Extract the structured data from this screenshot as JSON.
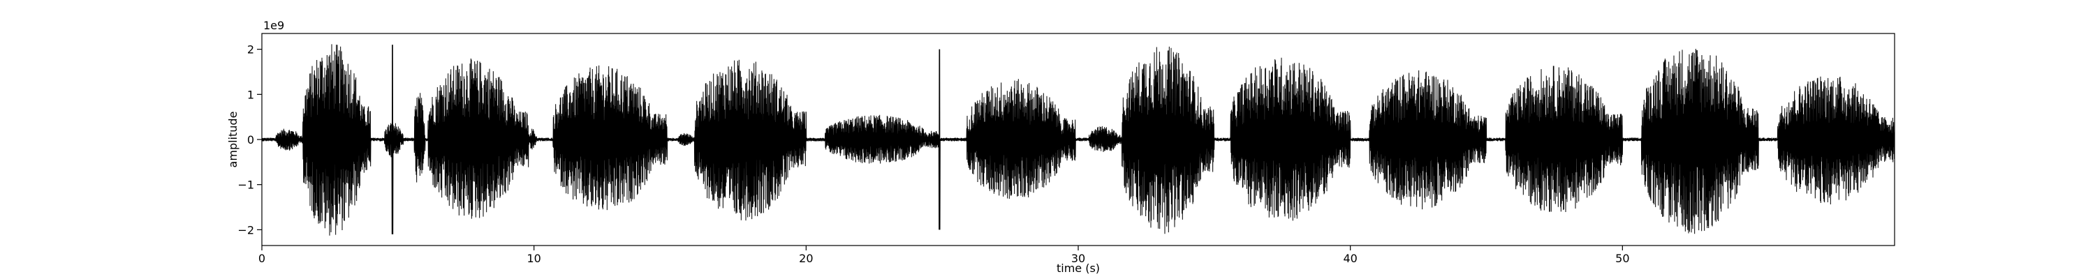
{
  "chart_data": {
    "type": "line",
    "title": "",
    "xlabel": "time (s)",
    "ylabel": "amplitude",
    "y_offset_label": "1e9",
    "xlim": [
      0,
      60
    ],
    "ylim": [
      -2.35,
      2.35
    ],
    "x_ticks": [
      0,
      10,
      20,
      30,
      40,
      50
    ],
    "x_tick_labels": [
      "0",
      "10",
      "20",
      "30",
      "40",
      "50"
    ],
    "y_ticks": [
      -2,
      -1,
      0,
      1,
      2
    ],
    "y_tick_labels": [
      "−2",
      "−1",
      "0",
      "1",
      "2"
    ],
    "grid": false,
    "legend": "none",
    "line_color": "#000000",
    "series": [
      {
        "segments": [
          {
            "start": 0.5,
            "end": 1.5,
            "peak": 0.25
          },
          {
            "start": 1.5,
            "end": 4.0,
            "peak": 2.15
          },
          {
            "start": 4.5,
            "end": 5.2,
            "peak": 0.4,
            "spike_at": 4.8,
            "spike": 2.1
          },
          {
            "start": 5.6,
            "end": 6.0,
            "peak": 1.1
          },
          {
            "start": 6.1,
            "end": 9.8,
            "peak": 1.8
          },
          {
            "start": 9.8,
            "end": 10.1,
            "peak": 0.25
          },
          {
            "start": 10.7,
            "end": 14.9,
            "peak": 1.65
          },
          {
            "start": 15.3,
            "end": 15.9,
            "peak": 0.15
          },
          {
            "start": 15.9,
            "end": 20.0,
            "peak": 1.8
          },
          {
            "start": 20.7,
            "end": 24.9,
            "peak": 0.55,
            "spike_at": 24.9,
            "spike": 2.0
          },
          {
            "start": 25.9,
            "end": 29.9,
            "peak": 1.35
          },
          {
            "start": 30.4,
            "end": 31.6,
            "peak": 0.3
          },
          {
            "start": 31.6,
            "end": 35.0,
            "peak": 2.1
          },
          {
            "start": 35.6,
            "end": 40.0,
            "peak": 1.85
          },
          {
            "start": 40.7,
            "end": 45.0,
            "peak": 1.55
          },
          {
            "start": 45.7,
            "end": 50.0,
            "peak": 1.65
          },
          {
            "start": 50.7,
            "end": 55.0,
            "peak": 2.1
          },
          {
            "start": 55.7,
            "end": 60.0,
            "peak": 1.45
          }
        ],
        "baseline_noise": 0.04
      }
    ]
  }
}
